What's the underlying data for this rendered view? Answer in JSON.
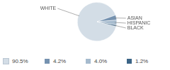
{
  "chart_data": {
    "type": "pie",
    "categories": [
      "WHITE",
      "ASIAN",
      "HISPANIC",
      "BLACK"
    ],
    "values": [
      90.5,
      4.2,
      4.0,
      1.2
    ],
    "value_labels": [
      "90.5%",
      "4.2%",
      "4.0%",
      "1.2%"
    ],
    "colors": [
      "#d3dde6",
      "#7592b0",
      "#a6bbce",
      "#3b6486"
    ],
    "legend": "bottom"
  }
}
